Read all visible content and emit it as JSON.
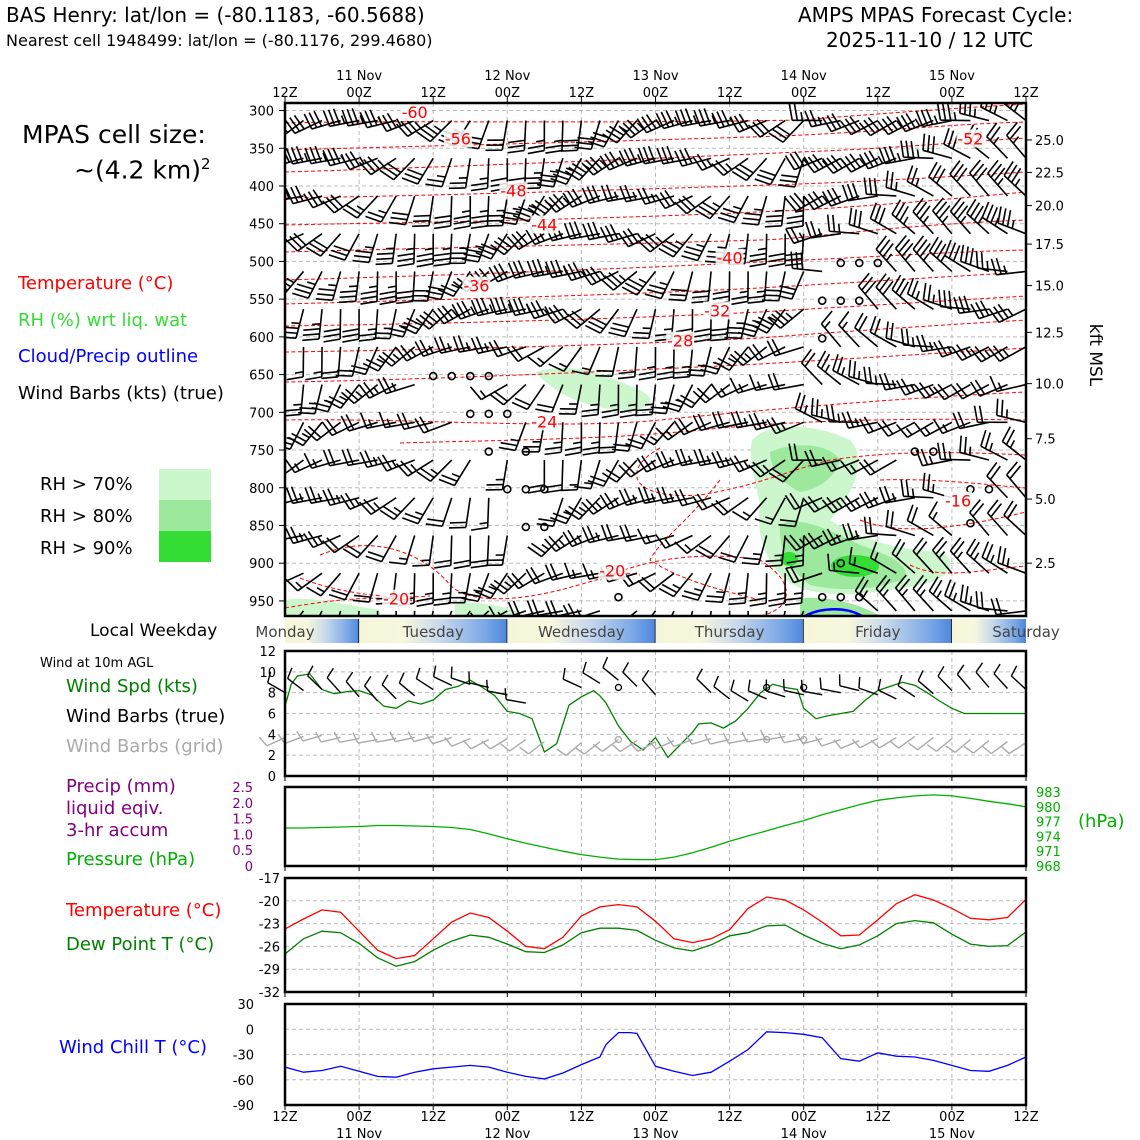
{
  "header": {
    "station": "BAS Henry: lat/lon = (-80.1183, -60.5688)",
    "nearest_cell": "Nearest cell 1948499: lat/lon = (-80.1176, 299.4680)",
    "cycle_title": "AMPS MPAS Forecast Cycle:",
    "cycle_time": "2025-11-10 / 12 UTC"
  },
  "cell_size": {
    "label": "MPAS cell size:",
    "value": "~(4.2 km)",
    "sup": "2"
  },
  "legends": {
    "upper": [
      {
        "text": "Temperature (°C)",
        "color": "#ff0000"
      },
      {
        "text": "RH (%) wrt liq. wat",
        "color": "#33dd33"
      },
      {
        "text": "Cloud/Precip outline",
        "color": "#0000ff"
      },
      {
        "text": "Wind Barbs (kts) (true)",
        "color": "#000000"
      }
    ],
    "rh": [
      {
        "text": "RH > 70%",
        "color": "#ccf7cc"
      },
      {
        "text": "RH > 80%",
        "color": "#9ce89c"
      },
      {
        "text": "RH > 90%",
        "color": "#33dd33"
      }
    ],
    "weekday_label": "Local Weekday",
    "wind10_caption": "Wind at 10m AGL",
    "wind10": [
      {
        "text": "Wind Spd (kts)",
        "color": "#008000"
      },
      {
        "text": "Wind Barbs (true)",
        "color": "#000000"
      },
      {
        "text": "Wind Barbs (grid)",
        "color": "#aaaaaa"
      }
    ],
    "precip": [
      {
        "text": "Precip (mm)",
        "color": "#800080"
      },
      {
        "text": "liquid eqiv.",
        "color": "#800080"
      },
      {
        "text": "3-hr accum",
        "color": "#800080"
      }
    ],
    "pressure": {
      "text": "Pressure (hPa)",
      "color": "#00b000"
    },
    "temps": [
      {
        "text": "Temperature (°C)",
        "color": "#ff0000"
      },
      {
        "text": "Dew Point T (°C)",
        "color": "#008000"
      }
    ],
    "windchill": {
      "text": "Wind Chill T (°C)",
      "color": "#0000ff"
    }
  },
  "time_axis": {
    "hours": [
      0,
      12,
      24,
      36,
      48,
      60,
      72,
      84,
      96,
      108,
      120
    ],
    "tick_labels": [
      "12Z",
      "00Z",
      "12Z",
      "00Z",
      "12Z",
      "00Z",
      "12Z",
      "00Z",
      "12Z",
      "00Z",
      "12Z"
    ],
    "dates": [
      {
        "hour": 12,
        "label": "11 Nov"
      },
      {
        "hour": 36,
        "label": "12 Nov"
      },
      {
        "hour": 60,
        "label": "13 Nov"
      },
      {
        "hour": 84,
        "label": "14 Nov"
      },
      {
        "hour": 108,
        "label": "15 Nov"
      }
    ]
  },
  "weekdays": [
    "Monday",
    "Tuesday",
    "Wednesday",
    "Thursday",
    "Friday",
    "Saturday"
  ],
  "chart_data": [
    {
      "type": "line",
      "name": "time-height cross section",
      "ylabel": "pressure (hPa)",
      "ylim": [
        970,
        290
      ],
      "y_ticks": [
        300,
        350,
        400,
        450,
        500,
        550,
        600,
        650,
        700,
        750,
        800,
        850,
        900,
        950
      ],
      "right_axis": {
        "label": "kft MSL",
        "ticks": [
          {
            "p": 339,
            "label": "25.0"
          },
          {
            "p": 382,
            "label": "22.5"
          },
          {
            "p": 426,
            "label": "20.0"
          },
          {
            "p": 477,
            "label": "17.5"
          },
          {
            "p": 532,
            "label": "15.0"
          },
          {
            "p": 594,
            "label": "12.5"
          },
          {
            "p": 662,
            "label": "10.0"
          },
          {
            "p": 735,
            "label": "7.5"
          },
          {
            "p": 815,
            "label": "5.0"
          },
          {
            "p": 900,
            "label": "2.5"
          }
        ]
      },
      "isotherm_labels": [
        {
          "h": 21,
          "p": 302,
          "label": "-60"
        },
        {
          "h": 28,
          "p": 337,
          "label": "-56"
        },
        {
          "h": 37,
          "p": 406,
          "label": "-48"
        },
        {
          "h": 42,
          "p": 451,
          "label": "-44"
        },
        {
          "h": 31,
          "p": 532,
          "label": "-36"
        },
        {
          "h": 72,
          "p": 495,
          "label": "-40"
        },
        {
          "h": 70,
          "p": 565,
          "label": "-32"
        },
        {
          "h": 64,
          "p": 605,
          "label": "-28"
        },
        {
          "h": 42,
          "p": 712,
          "label": "-24"
        },
        {
          "h": 53,
          "p": 910,
          "label": "-20"
        },
        {
          "h": 18,
          "p": 947,
          "label": "-20"
        },
        {
          "h": 111,
          "p": 337,
          "label": "-52"
        },
        {
          "h": 109,
          "p": 817,
          "label": "-16"
        }
      ],
      "calm_points": [
        [
          24,
          652
        ],
        [
          27,
          652
        ],
        [
          30,
          652
        ],
        [
          33,
          652
        ],
        [
          30,
          702
        ],
        [
          33,
          702
        ],
        [
          36,
          702
        ],
        [
          33,
          752
        ],
        [
          39,
          752
        ],
        [
          36,
          802
        ],
        [
          39,
          802
        ],
        [
          42,
          802
        ],
        [
          39,
          852
        ],
        [
          42,
          852
        ],
        [
          90,
          502
        ],
        [
          93,
          502
        ],
        [
          96,
          502
        ],
        [
          87,
          552
        ],
        [
          90,
          552
        ],
        [
          93,
          552
        ],
        [
          87,
          602
        ],
        [
          102,
          752
        ],
        [
          105,
          752
        ],
        [
          111,
          802
        ],
        [
          114,
          802
        ],
        [
          111,
          847
        ],
        [
          90,
          900
        ],
        [
          54,
          945
        ],
        [
          87,
          945
        ],
        [
          90,
          945
        ],
        [
          93,
          945
        ]
      ]
    },
    {
      "type": "line",
      "name": "10m wind speed",
      "ylabel": "Wind Spd (kts)",
      "ylim": [
        0,
        12
      ],
      "y_ticks": [
        0,
        2,
        4,
        6,
        8,
        10,
        12
      ],
      "x_hours": [
        0,
        1,
        2,
        4,
        6,
        8,
        10,
        12,
        14,
        16,
        18,
        20,
        22,
        24,
        26,
        28,
        30,
        32,
        34,
        36,
        38,
        40,
        42,
        44,
        46,
        48,
        50,
        51,
        52,
        54,
        56,
        58,
        60,
        62,
        64,
        66,
        67,
        69,
        71,
        73,
        75,
        77,
        79,
        81,
        83,
        84,
        86,
        88,
        90,
        92,
        94,
        96,
        98,
        100,
        102,
        104,
        106,
        108,
        110,
        112,
        114,
        116,
        118,
        120
      ],
      "values": [
        6.7,
        8.8,
        9.6,
        9.8,
        8.3,
        7.9,
        8.1,
        8.2,
        7.8,
        6.7,
        6.5,
        7.2,
        6.9,
        7.3,
        8.3,
        8.6,
        9.2,
        8.5,
        7.7,
        6.2,
        6.0,
        5.5,
        2.3,
        3.1,
        6.8,
        7.6,
        8.2,
        7.7,
        7.0,
        4.8,
        3.3,
        2.5,
        3.7,
        1.8,
        3.0,
        4.2,
        5.0,
        5.1,
        4.6,
        5.3,
        6.5,
        8.0,
        8.8,
        8.5,
        8.3,
        6.5,
        5.5,
        5.8,
        6.0,
        6.2,
        7.3,
        8.2,
        8.6,
        9.0,
        8.7,
        8.0,
        7.2,
        6.5,
        6.0,
        6.0,
        6.0,
        6.0,
        6.0,
        6.0
      ],
      "barbs_true": [
        [
          0,
          8.0
        ],
        [
          3,
          8.2
        ],
        [
          6,
          8.3
        ],
        [
          9,
          8.0
        ],
        [
          12,
          7.6
        ],
        [
          15,
          7.2
        ],
        [
          18,
          7.4
        ],
        [
          21,
          7.7
        ],
        [
          24,
          8.3
        ],
        [
          27,
          8.7
        ],
        [
          30,
          8.8
        ],
        [
          33,
          8.5
        ],
        [
          36,
          7.8
        ],
        [
          39,
          7.0
        ],
        [
          48,
          8.5
        ],
        [
          51,
          8.9
        ],
        [
          54,
          9.2
        ],
        [
          57,
          8.6
        ],
        [
          60,
          7.8
        ],
        [
          69,
          8.0
        ],
        [
          72,
          7.4
        ],
        [
          75,
          7.2
        ],
        [
          78,
          7.4
        ],
        [
          81,
          7.6
        ],
        [
          84,
          7.8
        ],
        [
          87,
          7.8
        ],
        [
          90,
          8.0
        ],
        [
          93,
          8.2
        ],
        [
          96,
          7.8
        ],
        [
          99,
          7.4
        ],
        [
          102,
          7.6
        ],
        [
          105,
          7.9
        ],
        [
          108,
          8.2
        ],
        [
          111,
          8.3
        ],
        [
          114,
          8.5
        ],
        [
          117,
          8.4
        ],
        [
          120,
          8.3
        ]
      ],
      "calm_true": [
        [
          54,
          8.5
        ],
        [
          78,
          8.5
        ],
        [
          84,
          8.5
        ]
      ],
      "barbs_grid": [
        [
          0,
          3.7
        ],
        [
          3,
          3.8
        ],
        [
          6,
          3.9
        ],
        [
          9,
          3.7
        ],
        [
          12,
          3.6
        ],
        [
          15,
          3.5
        ],
        [
          18,
          3.6
        ],
        [
          21,
          3.7
        ],
        [
          24,
          3.8
        ],
        [
          27,
          3.7
        ],
        [
          30,
          3.6
        ],
        [
          33,
          3.5
        ],
        [
          36,
          3.6
        ],
        [
          39,
          3.5
        ],
        [
          42,
          3.3
        ],
        [
          48,
          3.2
        ],
        [
          51,
          3.3
        ],
        [
          54,
          3.5
        ],
        [
          57,
          3.4
        ],
        [
          60,
          3.3
        ],
        [
          63,
          3.4
        ],
        [
          66,
          3.5
        ],
        [
          69,
          3.6
        ],
        [
          72,
          3.5
        ],
        [
          75,
          3.5
        ],
        [
          78,
          3.6
        ],
        [
          81,
          3.8
        ],
        [
          84,
          3.6
        ],
        [
          87,
          3.6
        ],
        [
          90,
          3.5
        ],
        [
          93,
          3.4
        ],
        [
          96,
          3.6
        ],
        [
          99,
          3.7
        ],
        [
          102,
          3.8
        ],
        [
          105,
          3.7
        ],
        [
          108,
          3.6
        ],
        [
          111,
          3.5
        ],
        [
          114,
          3.4
        ],
        [
          117,
          3.3
        ],
        [
          120,
          3.2
        ]
      ],
      "calm_grid": [
        [
          54,
          3.5
        ],
        [
          78,
          3.5
        ],
        [
          84,
          3.5
        ]
      ]
    },
    {
      "type": "line",
      "name": "precip and pressure",
      "ylabel": "Precip (mm) / Pressure (hPa)",
      "precip_ylim": [
        0,
        2.5
      ],
      "precip_ticks": [
        "0",
        "0.5",
        "1.0",
        "1.5",
        "2.0",
        "2.5"
      ],
      "precip_values": [
        0,
        0,
        0,
        0,
        0,
        0,
        0,
        0,
        0,
        0,
        0,
        0,
        0,
        0,
        0,
        0,
        0,
        0,
        0,
        0,
        0,
        0,
        0,
        0,
        0,
        0,
        0,
        0,
        0,
        0,
        0,
        0,
        0,
        0,
        0,
        0,
        0,
        0,
        0,
        0,
        0
      ],
      "pressure_ylim": [
        968,
        984
      ],
      "pressure_ticks": [
        983,
        980,
        977,
        974,
        971,
        968
      ],
      "pressure_unit": "(hPa)",
      "x_hours": [
        0,
        3,
        6,
        9,
        12,
        15,
        18,
        21,
        24,
        27,
        30,
        33,
        36,
        39,
        42,
        45,
        48,
        51,
        54,
        57,
        60,
        63,
        66,
        69,
        72,
        75,
        78,
        81,
        84,
        87,
        90,
        93,
        96,
        99,
        102,
        105,
        108,
        111,
        114,
        117,
        120
      ],
      "pressure_values": [
        975.7,
        975.7,
        975.8,
        975.9,
        976.0,
        976.2,
        976.2,
        976.1,
        976.0,
        975.8,
        975.4,
        974.5,
        973.5,
        972.6,
        971.8,
        971.0,
        970.3,
        969.8,
        969.4,
        969.3,
        969.3,
        969.8,
        970.7,
        971.8,
        973.0,
        974.1,
        975.1,
        976.2,
        977.2,
        978.4,
        979.4,
        980.4,
        981.3,
        981.8,
        982.2,
        982.4,
        982.2,
        981.7,
        981.1,
        980.6,
        980.0
      ]
    },
    {
      "type": "line",
      "name": "temperature and dew point",
      "ylabel": "Temperature (°C)",
      "ylim": [
        -32,
        -17
      ],
      "y_ticks": [
        -32,
        -29,
        -26,
        -23,
        -20,
        -17
      ],
      "x_hours": [
        0,
        3,
        6,
        9,
        12,
        15,
        18,
        21,
        24,
        27,
        30,
        33,
        36,
        39,
        42,
        45,
        48,
        51,
        54,
        57,
        60,
        63,
        66,
        69,
        72,
        75,
        78,
        81,
        84,
        87,
        90,
        93,
        96,
        99,
        102,
        105,
        108,
        111,
        114,
        117,
        120
      ],
      "series": [
        {
          "name": "Temperature",
          "color": "#ff0000",
          "values": [
            -23.7,
            -22.4,
            -21.2,
            -21.5,
            -24.0,
            -26.5,
            -27.6,
            -27.2,
            -25.0,
            -22.8,
            -21.6,
            -22.2,
            -24.0,
            -26.0,
            -26.3,
            -24.8,
            -22.0,
            -20.8,
            -20.5,
            -20.8,
            -22.7,
            -25.0,
            -25.5,
            -25.0,
            -23.8,
            -21.0,
            -19.5,
            -19.9,
            -21.2,
            -22.8,
            -24.6,
            -24.5,
            -22.5,
            -20.4,
            -19.2,
            -19.9,
            -21.0,
            -22.3,
            -22.5,
            -22.2,
            -19.8
          ]
        },
        {
          "name": "Dew Point T",
          "color": "#008000",
          "values": [
            -27.0,
            -25.0,
            -24.0,
            -24.2,
            -25.6,
            -27.5,
            -28.6,
            -28.0,
            -26.5,
            -25.3,
            -24.5,
            -24.8,
            -25.7,
            -26.7,
            -26.8,
            -25.8,
            -24.2,
            -23.6,
            -23.6,
            -23.9,
            -25.2,
            -26.2,
            -26.6,
            -25.8,
            -24.6,
            -24.2,
            -23.3,
            -23.2,
            -24.5,
            -25.6,
            -26.3,
            -25.8,
            -24.6,
            -23.0,
            -22.6,
            -22.9,
            -24.4,
            -25.7,
            -26.0,
            -25.9,
            -24.1
          ]
        }
      ]
    },
    {
      "type": "line",
      "name": "wind chill",
      "ylabel": "Wind Chill T (°C)",
      "ylim": [
        -90,
        30
      ],
      "y_ticks": [
        -90,
        -60,
        -30,
        0,
        30
      ],
      "x_hours": [
        0,
        3,
        6,
        9,
        12,
        15,
        18,
        21,
        24,
        27,
        30,
        33,
        36,
        39,
        42,
        45,
        48,
        51,
        52,
        54,
        56,
        57,
        60,
        63,
        66,
        69,
        72,
        75,
        78,
        81,
        84,
        87,
        90,
        93,
        96,
        99,
        102,
        105,
        108,
        111,
        114,
        117,
        120
      ],
      "values": [
        -45,
        -51,
        -49,
        -44,
        -50,
        -56,
        -57,
        -51,
        -47,
        -45,
        -43,
        -45,
        -51,
        -56,
        -59,
        -52,
        -42,
        -33,
        -18,
        -4,
        -4,
        -5,
        -44,
        -50,
        -55,
        -51,
        -38,
        -24,
        -3,
        -4,
        -6,
        -10,
        -35,
        -38,
        -28,
        -32,
        -33,
        -37,
        -43,
        -49,
        -50,
        -43,
        -33
      ]
    }
  ]
}
